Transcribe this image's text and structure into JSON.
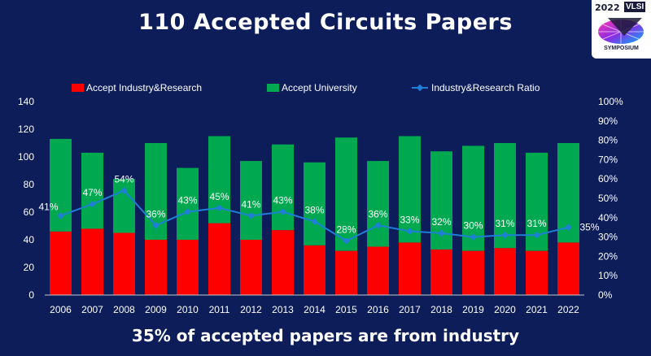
{
  "slide": {
    "title": "110 Accepted Circuits Papers",
    "subtitle": "35% of accepted papers are from industry"
  },
  "logo": {
    "year": "2022",
    "name": "VLSI",
    "label": "SYMPOSIUM"
  },
  "colors": {
    "background": "#0c1d5a",
    "industry": "#ff0000",
    "university": "#00a84f",
    "ratio": "#1f7fd6"
  },
  "chart_data": {
    "type": "bar",
    "stacked": true,
    "categories": [
      "2006",
      "2007",
      "2008",
      "2009",
      "2010",
      "2011",
      "2012",
      "2013",
      "2014",
      "2015",
      "2016",
      "2017",
      "2018",
      "2019",
      "2020",
      "2021",
      "2022"
    ],
    "series": [
      {
        "name": "Accept Industry&Research",
        "values": [
          46,
          48,
          45,
          40,
          40,
          52,
          40,
          47,
          36,
          32,
          35,
          38,
          33,
          32,
          34,
          32,
          38
        ]
      },
      {
        "name": "Accept University",
        "values": [
          67,
          55,
          39,
          70,
          52,
          63,
          57,
          62,
          60,
          82,
          62,
          77,
          71,
          76,
          76,
          71,
          72
        ]
      }
    ],
    "line_series": {
      "name": "Industry&Research Ratio",
      "values": [
        41,
        47,
        54,
        36,
        43,
        45,
        41,
        43,
        38,
        28,
        36,
        33,
        32,
        30,
        31,
        31,
        35
      ],
      "labels": [
        "41%",
        "47%",
        "54%",
        "36%",
        "43%",
        "45%",
        "41%",
        "43%",
        "38%",
        "28%",
        "36%",
        "33%",
        "32%",
        "30%",
        "31%",
        "31%",
        "35%"
      ]
    },
    "ylim": [
      0,
      140
    ],
    "yticks": [
      "0",
      "20",
      "40",
      "60",
      "80",
      "100",
      "120",
      "140"
    ],
    "y2lim": [
      0,
      100
    ],
    "y2ticks": [
      "0%",
      "10%",
      "20%",
      "30%",
      "40%",
      "50%",
      "60%",
      "70%",
      "80%",
      "90%",
      "100%"
    ],
    "legend": [
      "Accept Industry&Research",
      "Accept University",
      "Industry&Research Ratio"
    ],
    "legend_position": "top"
  }
}
